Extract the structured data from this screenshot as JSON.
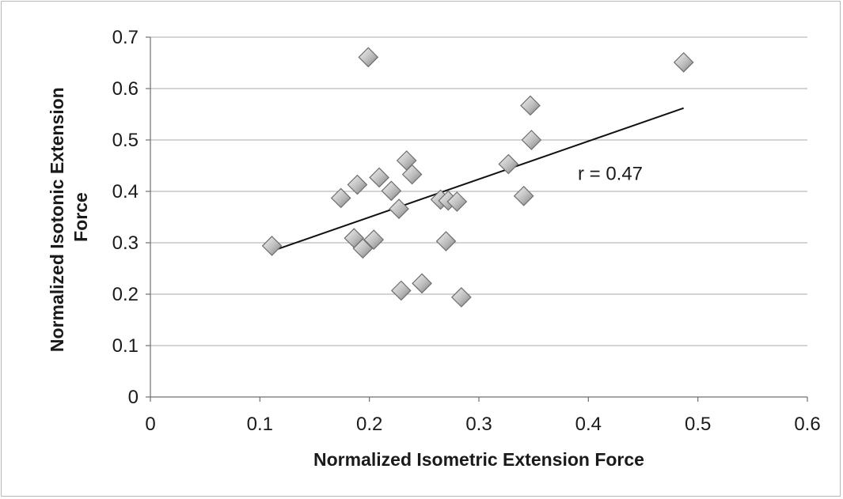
{
  "chart_data": {
    "type": "scatter",
    "xlabel": "Normalized Isometric Extension Force",
    "ylabel_lines": [
      "Normalized Isotonic Extension",
      "Force"
    ],
    "xlim": [
      0,
      0.6
    ],
    "ylim": [
      0,
      0.7
    ],
    "xticks": [
      0,
      0.1,
      0.2,
      0.3,
      0.4,
      0.5,
      0.6
    ],
    "xtick_labels": [
      "0",
      "0.1",
      "0.2",
      "0.3",
      "0.4",
      "0.5",
      "0.6"
    ],
    "yticks": [
      0,
      0.1,
      0.2,
      0.3,
      0.4,
      0.5,
      0.6,
      0.7
    ],
    "ytick_labels": [
      "0",
      "0.1",
      "0.2",
      "0.3",
      "0.4",
      "0.5",
      "0.6",
      "0.7"
    ],
    "grid": "horizontal",
    "legend": "none",
    "marker": "diamond",
    "points": [
      {
        "x": 0.111,
        "y": 0.294
      },
      {
        "x": 0.174,
        "y": 0.387
      },
      {
        "x": 0.186,
        "y": 0.309
      },
      {
        "x": 0.189,
        "y": 0.413
      },
      {
        "x": 0.194,
        "y": 0.289
      },
      {
        "x": 0.199,
        "y": 0.661
      },
      {
        "x": 0.204,
        "y": 0.306
      },
      {
        "x": 0.209,
        "y": 0.427
      },
      {
        "x": 0.22,
        "y": 0.401
      },
      {
        "x": 0.227,
        "y": 0.366
      },
      {
        "x": 0.229,
        "y": 0.207
      },
      {
        "x": 0.234,
        "y": 0.46
      },
      {
        "x": 0.239,
        "y": 0.433
      },
      {
        "x": 0.248,
        "y": 0.221
      },
      {
        "x": 0.265,
        "y": 0.384
      },
      {
        "x": 0.27,
        "y": 0.303
      },
      {
        "x": 0.272,
        "y": 0.382
      },
      {
        "x": 0.28,
        "y": 0.38
      },
      {
        "x": 0.284,
        "y": 0.194
      },
      {
        "x": 0.327,
        "y": 0.453
      },
      {
        "x": 0.341,
        "y": 0.391
      },
      {
        "x": 0.347,
        "y": 0.567
      },
      {
        "x": 0.348,
        "y": 0.5
      },
      {
        "x": 0.487,
        "y": 0.651
      }
    ],
    "trendline": {
      "x": [
        0.111,
        0.487
      ],
      "y": [
        0.284,
        0.562
      ]
    },
    "annotations": [
      {
        "text": "r = 0.47",
        "x": 0.42,
        "y": 0.422
      }
    ]
  }
}
